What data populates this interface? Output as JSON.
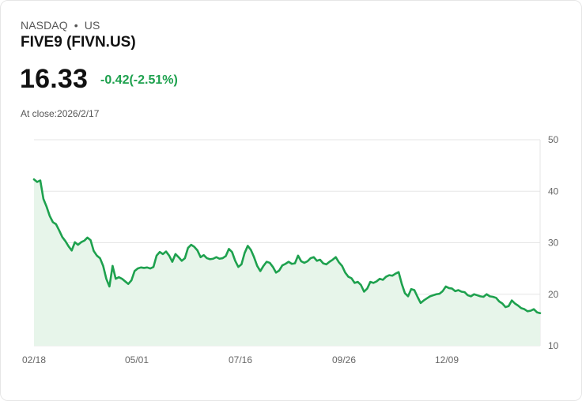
{
  "header": {
    "exchange": "NASDAQ",
    "separator": "•",
    "region": "US",
    "title": "FIVE9 (FIVN.US)",
    "price": "16.33",
    "change": "-0.42(-2.51%)",
    "close_label": "At close:2026/2/17"
  },
  "colors": {
    "line": "#1ea14e",
    "fill": "#e7f5ea",
    "grid": "#e5e5e5",
    "text": "#111111"
  },
  "chart_data": {
    "type": "area",
    "x_tick_labels": [
      "02/18",
      "05/01",
      "07/16",
      "09/26",
      "12/09"
    ],
    "y_tick_labels": [
      "50",
      "40",
      "30",
      "20",
      "10"
    ],
    "ylim": [
      10,
      50
    ],
    "grid": true,
    "y_axis_position": "right",
    "series": [
      {
        "values": [
          42.3,
          41.8,
          42.1,
          38.5,
          37,
          35.2,
          34,
          33.6,
          32.4,
          31.1,
          30.3,
          29.3,
          28.5,
          30.1,
          29.6,
          30.1,
          30.4,
          31,
          30.5,
          28.4,
          27.5,
          27,
          25.5,
          23,
          21.5,
          25.5,
          23,
          23.3,
          23,
          22.5,
          22,
          22.7,
          24.5,
          25,
          25.2,
          25.1,
          25.2,
          25,
          25.3,
          27.5,
          28.2,
          27.8,
          28.3,
          27.5,
          26.3,
          27.8,
          27.2,
          26.5,
          27,
          29,
          29.6,
          29.2,
          28.5,
          27.2,
          27.6,
          27,
          26.8,
          26.9,
          27.2,
          26.9,
          27,
          27.4,
          28.8,
          28.2,
          26.5,
          25.3,
          25.8,
          28,
          29.4,
          28.6,
          27.2,
          25.5,
          24.5,
          25.5,
          26.3,
          26.1,
          25.3,
          24.2,
          24.6,
          25.6,
          25.9,
          26.3,
          25.9,
          26,
          27.5,
          26.4,
          26.1,
          26.4,
          27,
          27.2,
          26.5,
          26.7,
          26,
          25.8,
          26.3,
          26.7,
          27.2,
          26.2,
          25.5,
          24.2,
          23.4,
          23.1,
          22.2,
          22.4,
          21.8,
          20.5,
          21.1,
          22.4,
          22.2,
          22.5,
          23,
          22.8,
          23.4,
          23.7,
          23.6,
          24,
          24.3,
          22,
          20.2,
          19.6,
          21,
          20.8,
          19.5,
          18.3,
          18.8,
          19.2,
          19.6,
          19.8,
          20,
          20.1,
          20.6,
          21.5,
          21.2,
          21.1,
          20.6,
          20.8,
          20.5,
          20.4,
          19.8,
          19.6,
          20,
          19.8,
          19.6,
          19.5,
          20,
          19.6,
          19.5,
          19.3,
          18.6,
          18.2,
          17.5,
          17.7,
          18.8,
          18.2,
          17.8,
          17.3,
          17.1,
          16.7,
          16.8,
          17.1,
          16.5,
          16.33
        ]
      }
    ]
  }
}
